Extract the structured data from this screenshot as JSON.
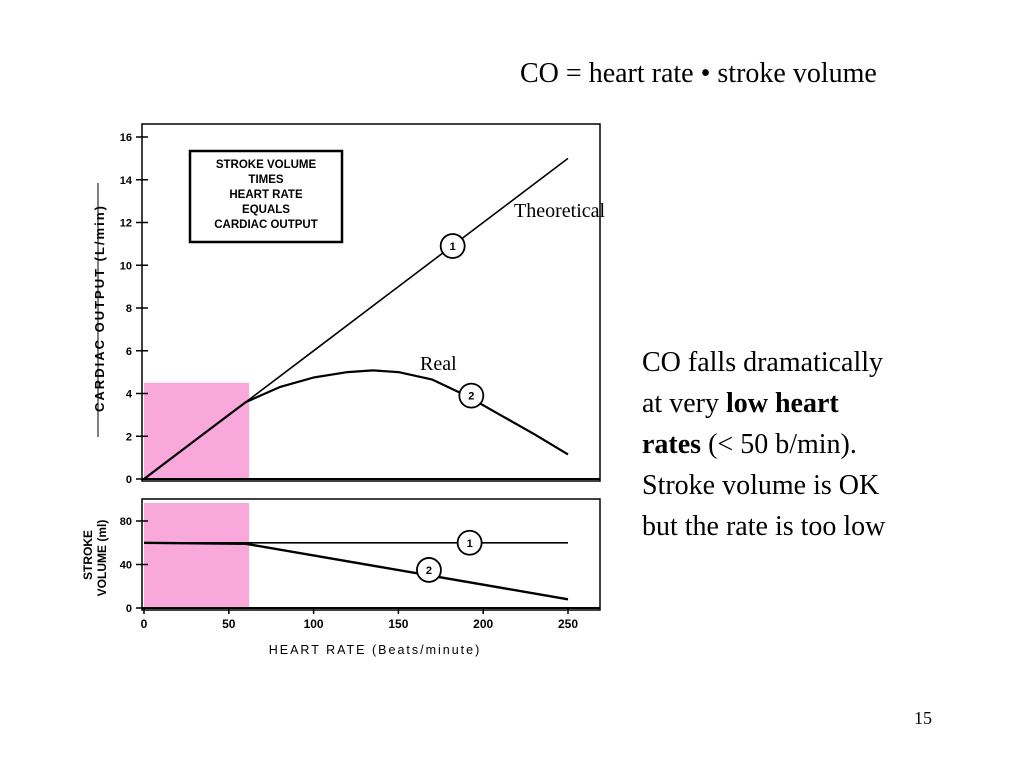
{
  "slide": {
    "title": "CO = heart rate • stroke volume",
    "note": {
      "line1": "CO falls dramatically",
      "line2_prefix": "at very ",
      "line2_bold": "low heart",
      "line3_bold": "rates",
      "line3_rest": " (< 50 b/min).",
      "line4": "Stroke volume is OK",
      "line5": "but the rate is too low"
    },
    "page_number": "15"
  },
  "colors": {
    "highlight": "#f9a8dc",
    "ink": "#000000"
  },
  "chart_data": [
    {
      "type": "line",
      "ylabel": "CARDIAC OUTPUT (L/min)",
      "xlim": [
        0,
        250
      ],
      "ylim": [
        0,
        16
      ],
      "yticks": [
        0,
        2,
        4,
        6,
        8,
        10,
        12,
        14,
        16
      ],
      "box_lines": [
        "STROKE VOLUME",
        "TIMES",
        "HEART RATE",
        "EQUALS",
        "CARDIAC OUTPUT"
      ],
      "series": [
        {
          "name": "Theoretical",
          "marker": "1",
          "x": [
            0,
            25,
            50,
            60,
            100,
            150,
            180,
            200,
            250
          ],
          "y": [
            0,
            1.5,
            3,
            3.6,
            6,
            9,
            10.8,
            12,
            15
          ]
        },
        {
          "name": "Real",
          "marker": "2",
          "x": [
            0,
            25,
            50,
            60,
            80,
            100,
            120,
            135,
            150,
            170,
            190,
            210,
            230,
            250
          ],
          "y": [
            0,
            1.5,
            3,
            3.6,
            4.3,
            4.75,
            5,
            5.08,
            5,
            4.65,
            3.9,
            3.0,
            2.1,
            1.15
          ]
        }
      ],
      "highlight": {
        "x": [
          0,
          62
        ],
        "y": [
          0,
          4.5
        ]
      }
    },
    {
      "type": "line",
      "xlabel": "HEART RATE (Beats/minute)",
      "ylabel_lines": [
        "STROKE",
        "VOLUME (ml)"
      ],
      "xlim": [
        0,
        250
      ],
      "ylim": [
        0,
        90
      ],
      "xticks": [
        0,
        50,
        100,
        150,
        200,
        250
      ],
      "yticks": [
        0,
        40,
        80
      ],
      "series": [
        {
          "marker": "1",
          "x": [
            0,
            250
          ],
          "y": [
            60,
            60
          ]
        },
        {
          "marker": "2",
          "x": [
            0,
            60,
            250
          ],
          "y": [
            60,
            59,
            8
          ]
        }
      ],
      "highlight": {
        "x": [
          0,
          62
        ],
        "y": [
          0,
          90
        ]
      }
    }
  ]
}
